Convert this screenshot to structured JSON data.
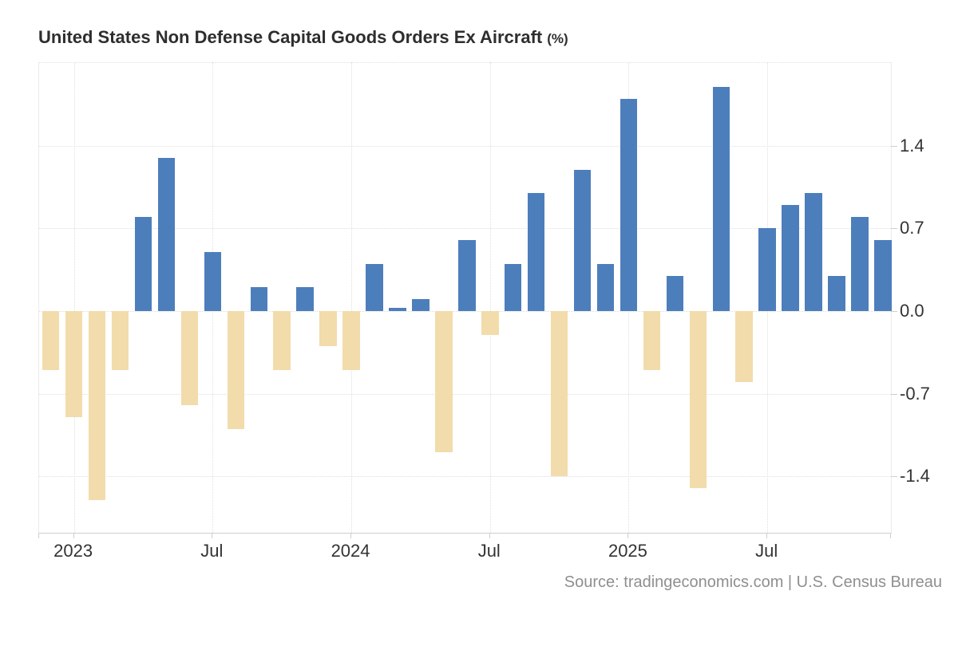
{
  "title": {
    "main": "United States Non Defense Capital Goods Orders Ex Aircraft",
    "unit": "(%)"
  },
  "source": "Source: tradingeconomics.com | U.S. Census Bureau",
  "colors": {
    "positive": "#4d7ebc",
    "negative": "#f2dcab",
    "grid": "#dfdfdf",
    "axis_line": "#cfcfcf",
    "label_text": "#333333",
    "title_text": "#2e2e2e",
    "source_text": "#8f8f8f",
    "background": "#ffffff"
  },
  "chart_data": {
    "type": "bar",
    "title": "United States Non Defense Capital Goods Orders Ex Aircraft (%)",
    "xlabel": "",
    "ylabel": "%",
    "grid": "dotted",
    "legend": "none",
    "ylim": [
      -1.88,
      2.11
    ],
    "x": [
      "Dec 2022",
      "Jan 2023",
      "Feb 2023",
      "Mar 2023",
      "Apr 2023",
      "May 2023",
      "Jun 2023",
      "Jul 2023",
      "Aug 2023",
      "Sep 2023",
      "Oct 2023",
      "Nov 2023",
      "Dec 2023",
      "Jan 2024",
      "Feb 2024",
      "Mar 2024",
      "Apr 2024",
      "May 2024",
      "Jun 2024",
      "Jul 2024",
      "Aug 2024",
      "Sep 2024",
      "Oct 2024",
      "Nov 2024",
      "Dec 2024",
      "Jan 2025",
      "Feb 2025",
      "Mar 2025",
      "Apr 2025",
      "May 2025",
      "Jun 2025",
      "Jul 2025",
      "Aug 2025",
      "Sep 2025",
      "Oct 2025",
      "Nov 2025",
      "Dec 2025"
    ],
    "values": [
      -0.5,
      -0.9,
      -1.6,
      -0.5,
      0.8,
      1.3,
      -0.8,
      0.5,
      -1.0,
      0.2,
      -0.5,
      0.2,
      -0.3,
      -0.5,
      0.4,
      0.03,
      0.1,
      -1.2,
      0.6,
      -0.2,
      0.4,
      1.0,
      -1.4,
      1.2,
      0.4,
      1.8,
      -0.5,
      0.3,
      -1.5,
      1.9,
      -0.6,
      0.7,
      0.9,
      1.0,
      0.3,
      0.8,
      0.6
    ],
    "bar_color_rule": "positive bars blue (#4d7ebc), negative bars tan (#f2dcab)",
    "yticks": [
      {
        "value": 1.4,
        "label": "1.4"
      },
      {
        "value": 0.7,
        "label": "0.7"
      },
      {
        "value": 0.0,
        "label": "0.0"
      },
      {
        "value": -0.7,
        "label": "-0.7"
      },
      {
        "value": -1.4,
        "label": "-1.4"
      }
    ],
    "xticks": [
      {
        "index": 1,
        "label": "2023"
      },
      {
        "index": 7,
        "label": "Jul"
      },
      {
        "index": 13,
        "label": "2024"
      },
      {
        "index": 19,
        "label": "Jul"
      },
      {
        "index": 25,
        "label": "2025"
      },
      {
        "index": 31,
        "label": "Jul"
      }
    ]
  }
}
